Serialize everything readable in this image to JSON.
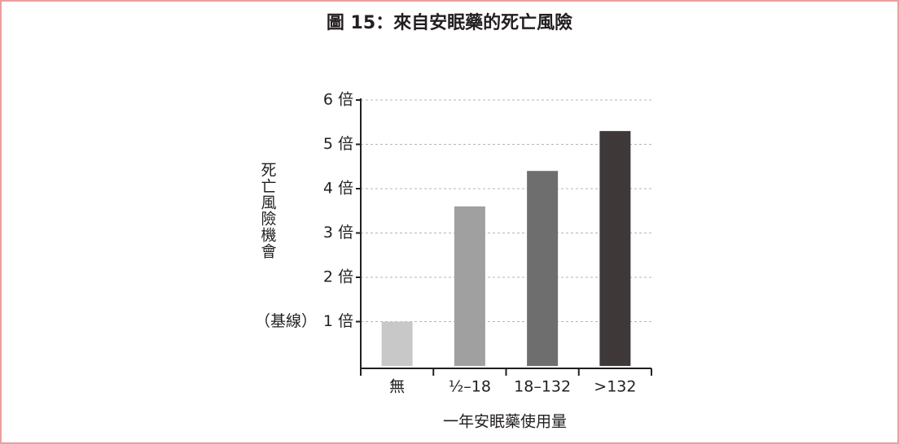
{
  "chart_data": {
    "type": "bar",
    "title": "圖 15：來自安眠藥的死亡風險",
    "y_label": "死亡風險機會",
    "x_label": "一年安眠藥使用量",
    "annotation": "（基線）",
    "categories": [
      "無",
      "½–18",
      "18–132",
      ">132"
    ],
    "values": [
      1.0,
      3.6,
      4.4,
      5.3
    ],
    "colors": [
      "#c8c8c8",
      "#9fa09f",
      "#6e6e6e",
      "#3e3839"
    ],
    "ylim": [
      0,
      6
    ],
    "yticks": [
      {
        "value": 1,
        "label": "1 倍"
      },
      {
        "value": 2,
        "label": "2 倍"
      },
      {
        "value": 3,
        "label": "3 倍"
      },
      {
        "value": 4,
        "label": "4 倍"
      },
      {
        "value": 5,
        "label": "5 倍"
      },
      {
        "value": 6,
        "label": "6 倍"
      }
    ],
    "grid": true
  }
}
